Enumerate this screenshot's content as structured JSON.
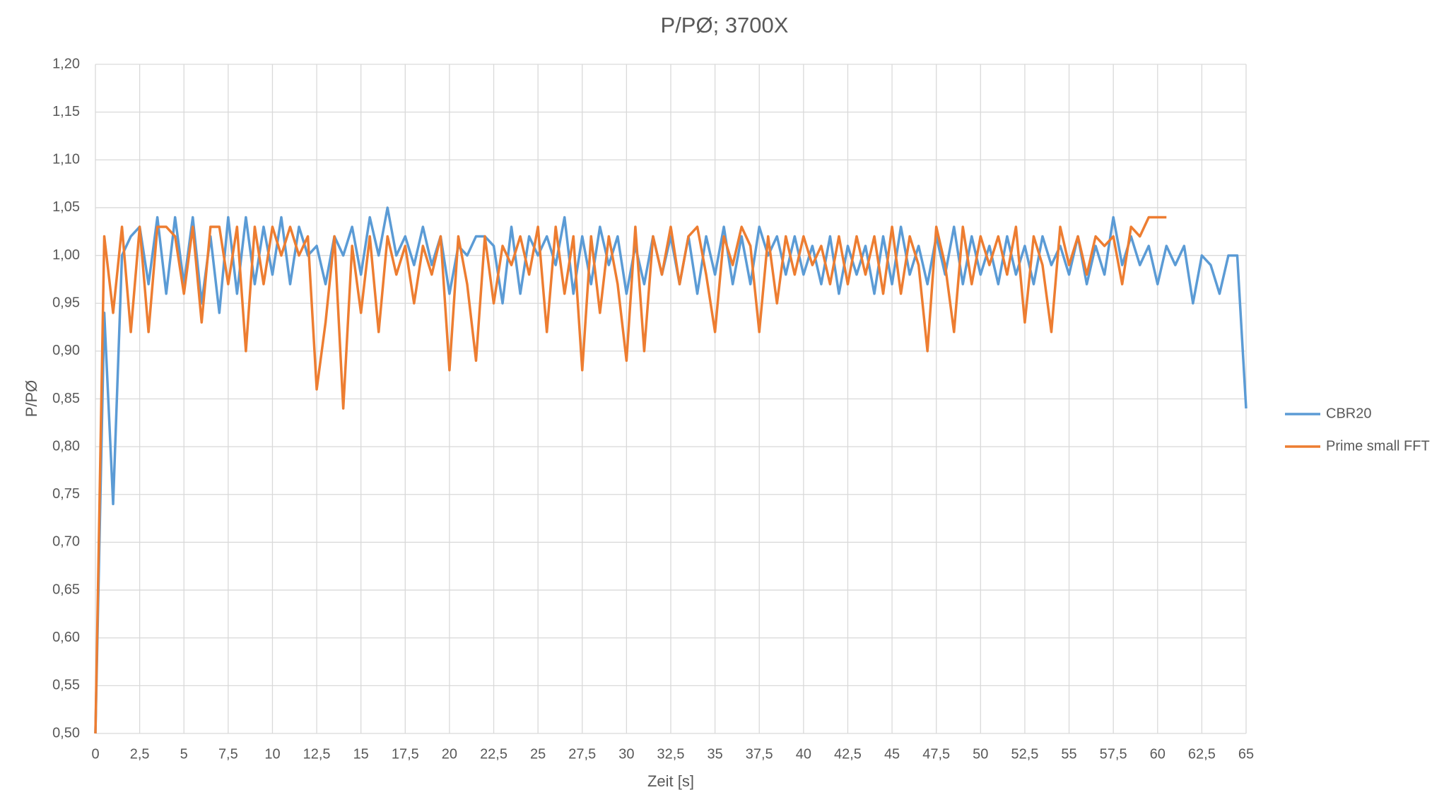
{
  "chart_data": {
    "type": "line",
    "title": "P/PØ; 3700X",
    "x_label": "Zeit [s]",
    "y_label": "P/PØ",
    "x": [
      0,
      0.5,
      1,
      1.5,
      2,
      2.5,
      3,
      3.5,
      4,
      4.5,
      5,
      5.5,
      6,
      6.5,
      7,
      7.5,
      8,
      8.5,
      9,
      9.5,
      10,
      10.5,
      11,
      11.5,
      12,
      12.5,
      13,
      13.5,
      14,
      14.5,
      15,
      15.5,
      16,
      16.5,
      17,
      17.5,
      18,
      18.5,
      19,
      19.5,
      20,
      20.5,
      21,
      21.5,
      22,
      22.5,
      23,
      23.5,
      24,
      24.5,
      25,
      25.5,
      26,
      26.5,
      27,
      27.5,
      28,
      28.5,
      29,
      29.5,
      30,
      30.5,
      31,
      31.5,
      32,
      32.5,
      33,
      33.5,
      34,
      34.5,
      35,
      35.5,
      36,
      36.5,
      37,
      37.5,
      38,
      38.5,
      39,
      39.5,
      40,
      40.5,
      41,
      41.5,
      42,
      42.5,
      43,
      43.5,
      44,
      44.5,
      45,
      45.5,
      46,
      46.5,
      47,
      47.5,
      48,
      48.5,
      49,
      49.5,
      50,
      50.5,
      51,
      51.5,
      52,
      52.5,
      53,
      53.5,
      54,
      54.5,
      55,
      55.5,
      56,
      56.5,
      57,
      57.5,
      58,
      58.5,
      59,
      59.5,
      60,
      60.5,
      61,
      61.5,
      62,
      62.5,
      63,
      63.5,
      64,
      64.5,
      65
    ],
    "series": [
      {
        "name": "CBR20",
        "color": "#5b9bd5",
        "values": [
          0.5,
          0.94,
          0.74,
          1.0,
          1.02,
          1.03,
          0.97,
          1.04,
          0.96,
          1.04,
          0.97,
          1.04,
          0.95,
          1.02,
          0.94,
          1.04,
          0.96,
          1.04,
          0.97,
          1.03,
          0.98,
          1.04,
          0.97,
          1.03,
          1.0,
          1.01,
          0.97,
          1.02,
          1.0,
          1.03,
          0.98,
          1.04,
          1.0,
          1.05,
          1.0,
          1.02,
          0.99,
          1.03,
          0.99,
          1.02,
          0.96,
          1.01,
          1.0,
          1.02,
          1.02,
          1.01,
          0.95,
          1.03,
          0.96,
          1.02,
          1.0,
          1.02,
          0.99,
          1.04,
          0.96,
          1.02,
          0.97,
          1.03,
          0.99,
          1.02,
          0.96,
          1.01,
          0.97,
          1.02,
          0.98,
          1.02,
          0.97,
          1.02,
          0.96,
          1.02,
          0.98,
          1.03,
          0.97,
          1.02,
          0.97,
          1.03,
          1.0,
          1.02,
          0.98,
          1.02,
          0.98,
          1.01,
          0.97,
          1.02,
          0.96,
          1.01,
          0.98,
          1.01,
          0.96,
          1.02,
          0.97,
          1.03,
          0.98,
          1.01,
          0.97,
          1.02,
          0.98,
          1.03,
          0.97,
          1.02,
          0.98,
          1.01,
          0.97,
          1.02,
          0.98,
          1.01,
          0.97,
          1.02,
          0.99,
          1.01,
          0.98,
          1.02,
          0.97,
          1.01,
          0.98,
          1.04,
          0.99,
          1.02,
          0.99,
          1.01,
          0.97,
          1.01,
          0.99,
          1.01,
          0.95,
          1.0,
          0.99,
          0.96,
          1.0,
          1.0,
          0.84
        ]
      },
      {
        "name": "Prime small FFT",
        "color": "#ed7d31",
        "values": [
          0.5,
          1.02,
          0.94,
          1.03,
          0.92,
          1.03,
          0.92,
          1.03,
          1.03,
          1.02,
          0.96,
          1.03,
          0.93,
          1.03,
          1.03,
          0.97,
          1.03,
          0.9,
          1.03,
          0.97,
          1.03,
          1.0,
          1.03,
          1.0,
          1.02,
          0.86,
          0.93,
          1.02,
          0.84,
          1.01,
          0.94,
          1.02,
          0.92,
          1.02,
          0.98,
          1.01,
          0.95,
          1.01,
          0.98,
          1.02,
          0.88,
          1.02,
          0.97,
          0.89,
          1.02,
          0.95,
          1.01,
          0.99,
          1.02,
          0.98,
          1.03,
          0.92,
          1.03,
          0.96,
          1.02,
          0.88,
          1.02,
          0.94,
          1.02,
          0.97,
          0.89,
          1.03,
          0.9,
          1.02,
          0.98,
          1.03,
          0.97,
          1.02,
          1.03,
          0.98,
          0.92,
          1.02,
          0.99,
          1.03,
          1.01,
          0.92,
          1.02,
          0.95,
          1.02,
          0.98,
          1.02,
          0.99,
          1.01,
          0.97,
          1.02,
          0.97,
          1.02,
          0.98,
          1.02,
          0.96,
          1.03,
          0.96,
          1.02,
          0.99,
          0.9,
          1.03,
          0.99,
          0.92,
          1.03,
          0.97,
          1.02,
          0.99,
          1.02,
          0.98,
          1.03,
          0.93,
          1.02,
          0.99,
          0.92,
          1.03,
          0.99,
          1.02,
          0.98,
          1.02,
          1.01,
          1.02,
          0.97,
          1.03,
          1.02,
          1.04,
          1.04,
          1.04,
          null,
          null,
          null,
          null,
          null,
          null,
          null,
          null,
          null
        ]
      }
    ],
    "xlim": [
      0,
      65
    ],
    "xticks": [
      0,
      {
        "value": 2.5,
        "label": "2,5"
      },
      5,
      {
        "value": 7.5,
        "label": "7,5"
      },
      10,
      {
        "value": 12.5,
        "label": "12,5"
      },
      15,
      {
        "value": 17.5,
        "label": "17,5"
      },
      20,
      {
        "value": 22.5,
        "label": "22,5"
      },
      25,
      {
        "value": 27.5,
        "label": "27,5"
      },
      30,
      {
        "value": 32.5,
        "label": "32,5"
      },
      35,
      {
        "value": 37.5,
        "label": "37,5"
      },
      40,
      {
        "value": 42.5,
        "label": "42,5"
      },
      45,
      {
        "value": 47.5,
        "label": "47,5"
      },
      50,
      {
        "value": 52.5,
        "label": "52,5"
      },
      55,
      {
        "value": 57.5,
        "label": "57,5"
      },
      60,
      {
        "value": 62.5,
        "label": "62,5"
      },
      65
    ],
    "ylim": [
      0.5,
      1.2
    ],
    "yticks": [
      {
        "value": 0.5,
        "label": "0,50"
      },
      {
        "value": 0.55,
        "label": "0,55"
      },
      {
        "value": 0.6,
        "label": "0,60"
      },
      {
        "value": 0.65,
        "label": "0,65"
      },
      {
        "value": 0.7,
        "label": "0,70"
      },
      {
        "value": 0.75,
        "label": "0,75"
      },
      {
        "value": 0.8,
        "label": "0,80"
      },
      {
        "value": 0.85,
        "label": "0,85"
      },
      {
        "value": 0.9,
        "label": "0,90"
      },
      {
        "value": 0.95,
        "label": "0,95"
      },
      {
        "value": 1.0,
        "label": "1,00"
      },
      {
        "value": 1.05,
        "label": "1,05"
      },
      {
        "value": 1.1,
        "label": "1,10"
      },
      {
        "value": 1.15,
        "label": "1,15"
      },
      {
        "value": 1.2,
        "label": "1,20"
      }
    ],
    "grid": true,
    "legend": "right"
  }
}
